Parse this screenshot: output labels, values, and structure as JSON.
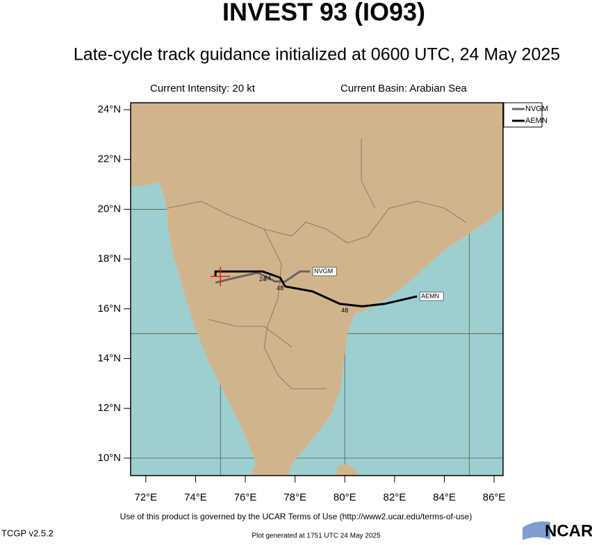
{
  "chart_data": {
    "type": "track-map",
    "title": "INVEST 93 (IO93)",
    "subtitle": "Late-cycle track guidance initialized at 0600 UTC, 24 May 2025",
    "intensity": "Current Intensity: 20 kt",
    "basin": "Current Basin: Arabian Sea",
    "xlim": [
      71.39,
      86.36
    ],
    "ylim": [
      9.3,
      24.28
    ],
    "xticks": [
      {
        "value": 72,
        "label": "72°E"
      },
      {
        "value": 74,
        "label": "74°E"
      },
      {
        "value": 76,
        "label": "76°E"
      },
      {
        "value": 78,
        "label": "78°E"
      },
      {
        "value": 80,
        "label": "80°E"
      },
      {
        "value": 82,
        "label": "82°E"
      },
      {
        "value": 84,
        "label": "84°E"
      },
      {
        "value": 86,
        "label": "86°E"
      }
    ],
    "yticks": [
      {
        "value": 10,
        "label": "10°N"
      },
      {
        "value": 12,
        "label": "12°N"
      },
      {
        "value": 14,
        "label": "14°N"
      },
      {
        "value": 16,
        "label": "16°N"
      },
      {
        "value": 18,
        "label": "18°N"
      },
      {
        "value": 20,
        "label": "20°N"
      },
      {
        "value": 22,
        "label": "22°N"
      },
      {
        "value": 24,
        "label": "24°N"
      }
    ],
    "xgrid": [
      75,
      80,
      85
    ],
    "ygrid": [
      10,
      15,
      20
    ],
    "current_position": [
      75.0,
      17.3
    ],
    "series": [
      {
        "name": "NVGM",
        "color": "#666666",
        "x": [
          74.8,
          75.6,
          76.5,
          76.9,
          77.2,
          77.6,
          78.2,
          78.6
        ],
        "values": [
          17.05,
          17.25,
          17.45,
          17.25,
          17.1,
          17.1,
          17.5,
          17.5
        ],
        "hour_labels": [
          null,
          null,
          "24",
          null,
          "48",
          null,
          null,
          null
        ]
      },
      {
        "name": "AEMN",
        "color": "#000000",
        "x": [
          74.8,
          74.8,
          75.8,
          76.7,
          77.4,
          77.6,
          78.7,
          79.8,
          80.7,
          81.6,
          82.9
        ],
        "values": [
          17.3,
          17.5,
          17.5,
          17.5,
          17.25,
          16.9,
          16.7,
          16.2,
          16.1,
          16.2,
          16.5
        ],
        "hour_labels": [
          null,
          null,
          null,
          "24",
          null,
          null,
          null,
          "48",
          null,
          null,
          null
        ]
      }
    ],
    "terms": "Use of this product is governed by the UCAR Terms of Use (http://www2.ucar.edu/terms-of-use)",
    "version": "TCGP v2.5.2",
    "generated": "Plot generated at 1751 UTC  24 May 2025",
    "logo": "NCAR"
  }
}
